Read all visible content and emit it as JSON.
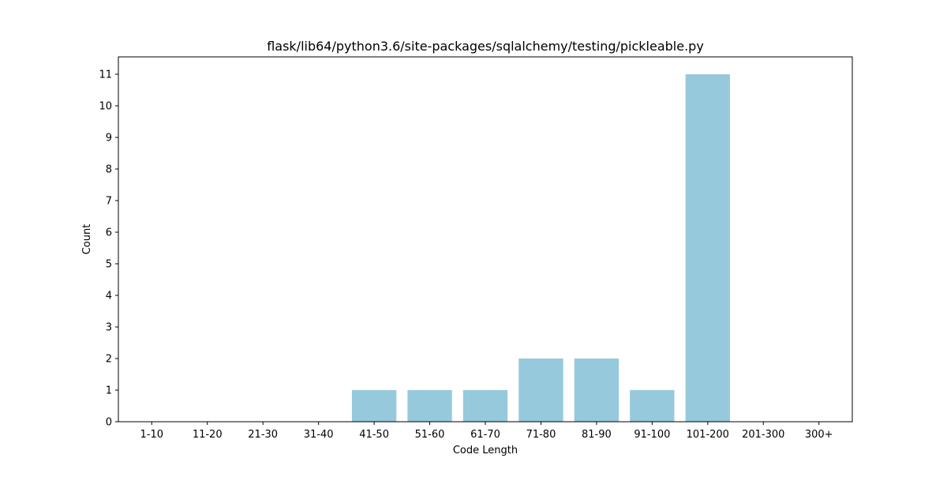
{
  "chart_data": {
    "type": "bar",
    "title": "flask/lib64/python3.6/site-packages/sqlalchemy/testing/pickleable.py",
    "xlabel": "Code Length",
    "ylabel": "Count",
    "categories": [
      "1-10",
      "11-20",
      "21-30",
      "31-40",
      "41-50",
      "51-60",
      "61-70",
      "71-80",
      "81-90",
      "91-100",
      "101-200",
      "201-300",
      "300+"
    ],
    "values": [
      0,
      0,
      0,
      0,
      1,
      1,
      1,
      2,
      2,
      1,
      11,
      0,
      0
    ],
    "ylim": [
      0,
      11.55
    ],
    "yticks": [
      0,
      1,
      2,
      3,
      4,
      5,
      6,
      7,
      8,
      9,
      10,
      11
    ],
    "grid": false,
    "legend": "none",
    "colors": {
      "bar": "#96c9dc",
      "axis": "#000000",
      "text": "#000000",
      "background": "#ffffff"
    }
  }
}
